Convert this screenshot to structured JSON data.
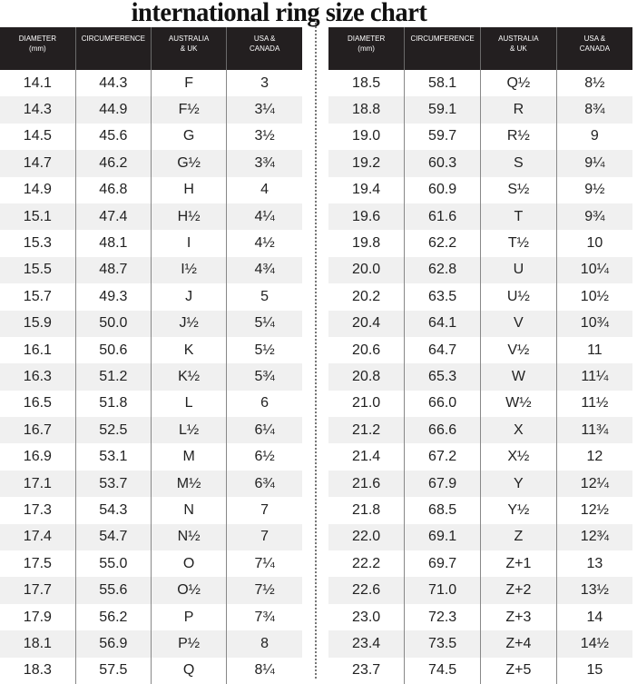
{
  "title": "international ring size chart",
  "headers": [
    "DIAMETER (mm)",
    "CIRCUMFERENCE",
    "AUSTRALIA & UK",
    "USA & CANADA"
  ],
  "left_rows": [
    [
      "14.1",
      "44.3",
      "F",
      "3"
    ],
    [
      "14.3",
      "44.9",
      "F½",
      "3¼"
    ],
    [
      "14.5",
      "45.6",
      "G",
      "3½"
    ],
    [
      "14.7",
      "46.2",
      "G½",
      "3¾"
    ],
    [
      "14.9",
      "46.8",
      "H",
      "4"
    ],
    [
      "15.1",
      "47.4",
      "H½",
      "4¼"
    ],
    [
      "15.3",
      "48.1",
      "I",
      "4½"
    ],
    [
      "15.5",
      "48.7",
      "I½",
      "4¾"
    ],
    [
      "15.7",
      "49.3",
      "J",
      "5"
    ],
    [
      "15.9",
      "50.0",
      "J½",
      "5¼"
    ],
    [
      "16.1",
      "50.6",
      "K",
      "5½"
    ],
    [
      "16.3",
      "51.2",
      "K½",
      "5¾"
    ],
    [
      "16.5",
      "51.8",
      "L",
      "6"
    ],
    [
      "16.7",
      "52.5",
      "L½",
      "6¼"
    ],
    [
      "16.9",
      "53.1",
      "M",
      "6½"
    ],
    [
      "17.1",
      "53.7",
      "M½",
      "6¾"
    ],
    [
      "17.3",
      "54.3",
      "N",
      "7"
    ],
    [
      "17.4",
      "54.7",
      "N½",
      "7"
    ],
    [
      "17.5",
      "55.0",
      "O",
      "7¼"
    ],
    [
      "17.7",
      "55.6",
      "O½",
      "7½"
    ],
    [
      "17.9",
      "56.2",
      "P",
      "7¾"
    ],
    [
      "18.1",
      "56.9",
      "P½",
      "8"
    ],
    [
      "18.3",
      "57.5",
      "Q",
      "8¼"
    ]
  ],
  "right_rows": [
    [
      "18.5",
      "58.1",
      "Q½",
      "8½"
    ],
    [
      "18.8",
      "59.1",
      "R",
      "8¾"
    ],
    [
      "19.0",
      "59.7",
      "R½",
      "9"
    ],
    [
      "19.2",
      "60.3",
      "S",
      "9¼"
    ],
    [
      "19.4",
      "60.9",
      "S½",
      "9½"
    ],
    [
      "19.6",
      "61.6",
      "T",
      "9¾"
    ],
    [
      "19.8",
      "62.2",
      "T½",
      "10"
    ],
    [
      "20.0",
      "62.8",
      "U",
      "10¼"
    ],
    [
      "20.2",
      "63.5",
      "U½",
      "10½"
    ],
    [
      "20.4",
      "64.1",
      "V",
      "10¾"
    ],
    [
      "20.6",
      "64.7",
      "V½",
      "11"
    ],
    [
      "20.8",
      "65.3",
      "W",
      "11¼"
    ],
    [
      "21.0",
      "66.0",
      "W½",
      "11½"
    ],
    [
      "21.2",
      "66.6",
      "X",
      "11¾"
    ],
    [
      "21.4",
      "67.2",
      "X½",
      "12"
    ],
    [
      "21.6",
      "67.9",
      "Y",
      "12¼"
    ],
    [
      "21.8",
      "68.5",
      "Y½",
      "12½"
    ],
    [
      "22.0",
      "69.1",
      "Z",
      "12¾"
    ],
    [
      "22.2",
      "69.7",
      "Z+1",
      "13"
    ],
    [
      "22.6",
      "71.0",
      "Z+2",
      "13½"
    ],
    [
      "23.0",
      "72.3",
      "Z+3",
      "14"
    ],
    [
      "23.4",
      "73.5",
      "Z+4",
      "14½"
    ],
    [
      "23.7",
      "74.5",
      "Z+5",
      "15"
    ]
  ]
}
